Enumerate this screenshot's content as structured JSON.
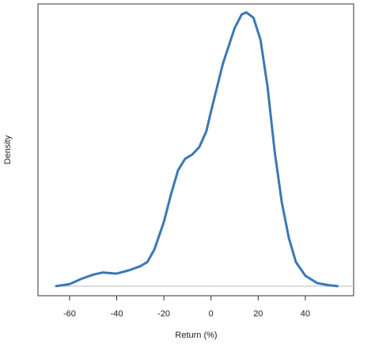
{
  "chart_data": {
    "type": "density",
    "x_label": "Return (%)",
    "y_label": "Density",
    "x": [
      -66,
      -60,
      -55,
      -50,
      -46,
      -40,
      -35,
      -30,
      -27,
      -24,
      -20,
      -17,
      -14,
      -11,
      -8,
      -5,
      -2,
      0,
      5,
      10,
      13,
      15,
      18,
      21,
      24,
      27,
      30,
      33,
      36,
      40,
      45,
      50,
      54
    ],
    "values": [
      0,
      0.0002,
      0.0007,
      0.0011,
      0.0013,
      0.0012,
      0.0015,
      0.0019,
      0.0023,
      0.0035,
      0.0061,
      0.0087,
      0.011,
      0.0121,
      0.0125,
      0.0132,
      0.0147,
      0.0166,
      0.0211,
      0.0245,
      0.0258,
      0.026,
      0.0255,
      0.0234,
      0.0189,
      0.0128,
      0.008,
      0.0046,
      0.0023,
      0.001,
      0.0003,
      0.0001,
      0
    ],
    "color": "#3b78b4",
    "xlim": [
      -73.4,
      60.5
    ],
    "xticks": [
      -60,
      -40,
      -20,
      0,
      20,
      40
    ],
    "ylim": [
      -0.0009,
      0.0268
    ]
  }
}
